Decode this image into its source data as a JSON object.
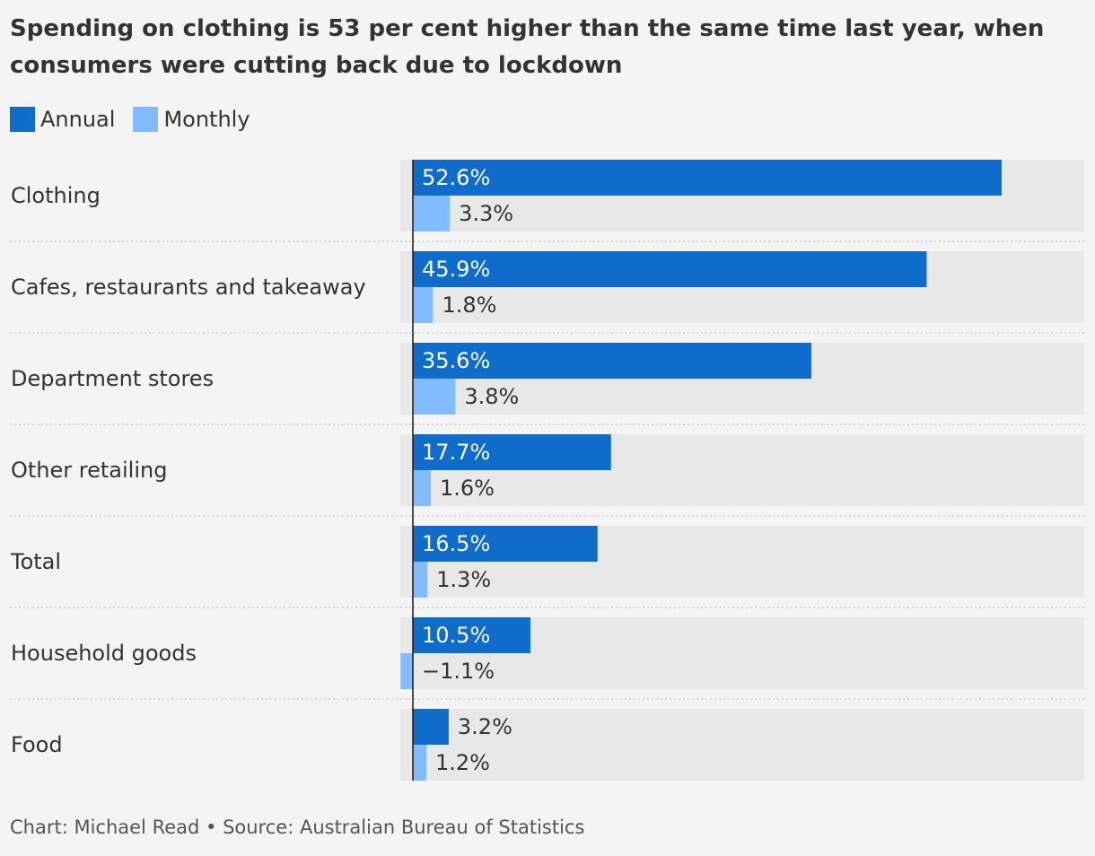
{
  "title": "Spending on clothing is 53 per cent higher than the same time last year, when consumers were cutting back due to lockdown",
  "legend": {
    "annual": "Annual",
    "monthly": "Monthly"
  },
  "source": "Chart: Michael Read • Source: Australian Bureau of Statistics",
  "colors": {
    "annual": "#0f6ccb",
    "monthly": "#82bbff",
    "track": "#e8e8e8",
    "background": "#f4f4f4",
    "text": "#333333"
  },
  "chart_data": {
    "type": "bar",
    "orientation": "horizontal",
    "title": "Spending on clothing is 53 per cent higher than the same time last year, when consumers were cutting back due to lockdown",
    "categories": [
      "Clothing",
      "Cafes, restaurants and takeaway",
      "Department stores",
      "Other retailing",
      "Total",
      "Household goods",
      "Food"
    ],
    "series": [
      {
        "name": "Annual",
        "values": [
          52.6,
          45.9,
          35.6,
          17.7,
          16.5,
          10.5,
          3.2
        ],
        "labels": [
          "52.6%",
          "45.9%",
          "35.6%",
          "17.7%",
          "16.5%",
          "10.5%",
          "3.2%"
        ]
      },
      {
        "name": "Monthly",
        "values": [
          3.3,
          1.8,
          3.8,
          1.6,
          1.3,
          -1.1,
          1.2
        ],
        "labels": [
          "3.3%",
          "1.8%",
          "3.8%",
          "1.6%",
          "1.3%",
          "−1.1%",
          "1.2%"
        ]
      }
    ],
    "xlabel": "",
    "ylabel": "",
    "xlim": [
      -1.1,
      60
    ],
    "grid": false,
    "legend_position": "top-left"
  }
}
